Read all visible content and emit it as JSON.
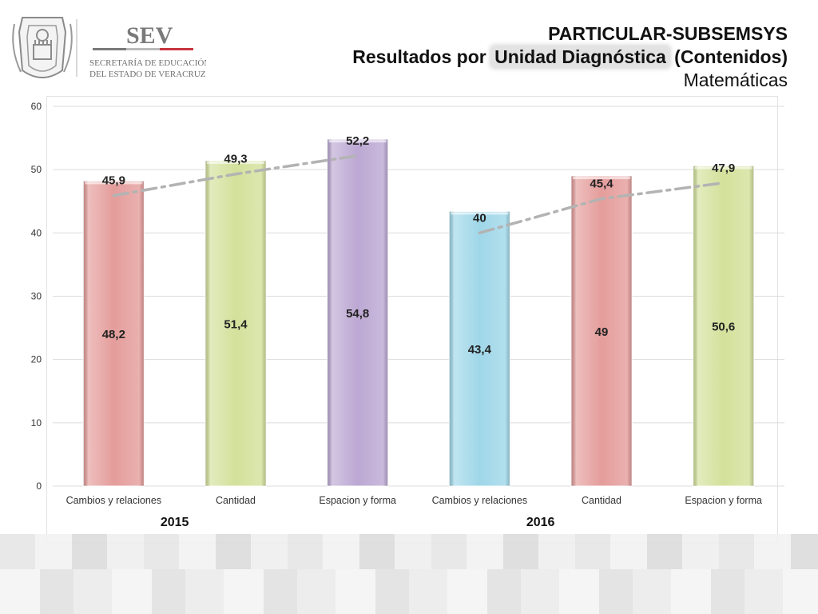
{
  "logo": {
    "text": "SEV",
    "subtitle_line1": "SECRETARÍA DE EDUCACIÓN",
    "subtitle_line2": "DEL ESTADO DE VERACRUZ",
    "icon": "veracruz-crest-icon"
  },
  "header": {
    "line1": "PARTICULAR-SUBSEMSYS",
    "line2_prefix": "Resultados por ",
    "line2_highlight": "Unidad Diagnóstica",
    "line2_suffix": " (Contenidos)",
    "line3": "Matemáticas"
  },
  "colors": {
    "red": "#e49d9b",
    "green": "#d3e19b",
    "purple": "#bca8d3",
    "blue": "#9fd7e9",
    "trend": "#b3b3b3",
    "grid": "#dcdcdc"
  },
  "chart_data": {
    "type": "bar",
    "title": "",
    "xlabel": "",
    "ylabel": "",
    "ylim": [
      0,
      60
    ],
    "yticks": [
      0,
      10,
      20,
      30,
      40,
      50,
      60
    ],
    "grid": true,
    "categories": [
      "Cambios y relaciones",
      "Cantidad",
      "Espacion y forma",
      "Cambios y relaciones",
      "Cantidad",
      "Espacion y forma"
    ],
    "groups": [
      {
        "label": "2015",
        "indices": [
          0,
          1,
          2
        ]
      },
      {
        "label": "2016",
        "indices": [
          3,
          4,
          5
        ]
      }
    ],
    "bars": [
      {
        "value": 48.2,
        "label": "48,2",
        "color": "#e49d9b"
      },
      {
        "value": 51.4,
        "label": "51,4",
        "color": "#d3e19b"
      },
      {
        "value": 54.8,
        "label": "54,8",
        "color": "#bca8d3"
      },
      {
        "value": 43.4,
        "label": "43,4",
        "color": "#9fd7e9"
      },
      {
        "value": 49,
        "label": "49",
        "color": "#e49d9b"
      },
      {
        "value": 50.6,
        "label": "50,6",
        "color": "#d3e19b"
      }
    ],
    "trend_series": [
      {
        "values": [
          45.9,
          49.3,
          52.2
        ],
        "labels": [
          "45,9",
          "49,3",
          "52,2"
        ],
        "indices": [
          0,
          1,
          2
        ]
      },
      {
        "values": [
          40,
          45.4,
          47.9
        ],
        "labels": [
          "40",
          "45,4",
          "47,9"
        ],
        "indices": [
          3,
          4,
          5
        ]
      }
    ]
  }
}
